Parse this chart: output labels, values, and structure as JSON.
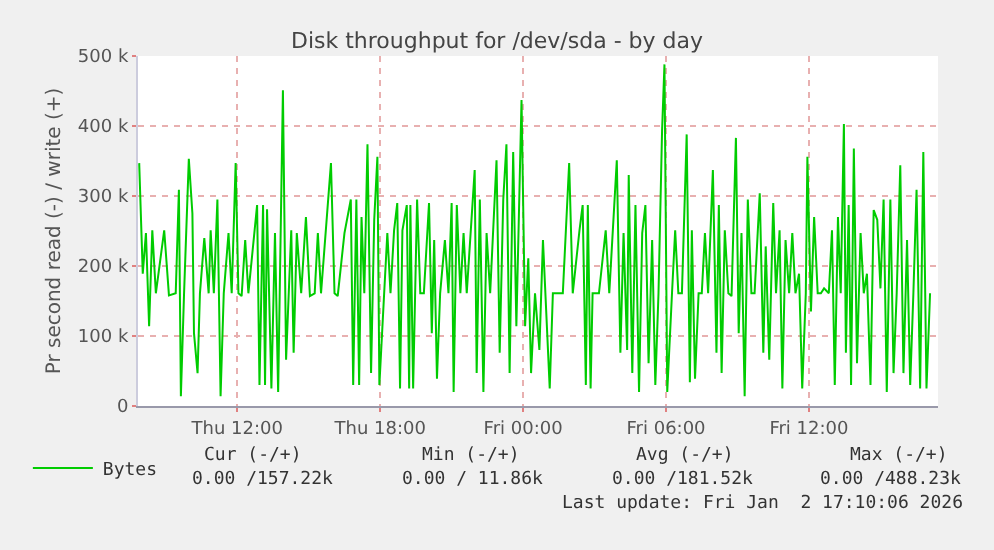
{
  "chart_data": {
    "type": "line",
    "title": "Disk throughput for /dev/sda - by day",
    "ylabel": "Pr second read (-) / write (+)",
    "xlim": [
      "2026-01-01T07:50",
      "2026-01-02T17:25"
    ],
    "xticks": [
      {
        "value": "2026-01-01T12:00",
        "label": "Thu 12:00"
      },
      {
        "value": "2026-01-01T18:00",
        "label": "Thu 18:00"
      },
      {
        "value": "2026-01-02T00:00",
        "label": "Fri 00:00"
      },
      {
        "value": "2026-01-02T06:00",
        "label": "Fri 06:00"
      },
      {
        "value": "2026-01-02T12:00",
        "label": "Fri 12:00"
      }
    ],
    "ylim": [
      0,
      500
    ],
    "yticks": [
      0,
      {
        "value": 100,
        "label": "100 k"
      },
      {
        "value": 200,
        "label": "200 k"
      },
      {
        "value": 300,
        "label": "300 k"
      },
      {
        "value": 400,
        "label": "400 k"
      },
      {
        "value": 500,
        "label": "500 k"
      }
    ],
    "grid": true,
    "legend": "bottom left",
    "marker": "none",
    "line_style": "solid",
    "series": [
      {
        "name": "Bytes",
        "color": "#00cc00",
        "x": [
          "2026-01-01T07:53",
          "2026-01-01T08:02",
          "2026-01-01T08:10",
          "2026-01-01T08:18",
          "2026-01-01T08:26",
          "2026-01-01T08:35",
          "2026-01-01T08:56",
          "2026-01-01T09:08",
          "2026-01-01T09:25",
          "2026-01-01T09:33",
          "2026-01-01T09:38",
          "2026-01-01T09:46",
          "2026-01-01T09:58",
          "2026-01-01T10:07",
          "2026-01-01T10:11",
          "2026-01-01T10:20",
          "2026-01-01T10:26",
          "2026-01-01T10:37",
          "2026-01-01T10:48",
          "2026-01-01T10:53",
          "2026-01-01T11:01",
          "2026-01-01T11:10",
          "2026-01-01T11:18",
          "2026-01-01T11:26",
          "2026-01-01T11:38",
          "2026-01-01T11:46",
          "2026-01-01T11:56",
          "2026-01-01T12:03",
          "2026-01-01T12:11",
          "2026-01-01T12:20",
          "2026-01-01T12:28",
          "2026-01-01T12:50",
          "2026-01-01T12:56",
          "2026-01-01T13:05",
          "2026-01-01T13:10",
          "2026-01-01T13:15",
          "2026-01-01T13:26",
          "2026-01-01T13:35",
          "2026-01-01T13:43",
          "2026-01-01T13:55",
          "2026-01-01T14:03",
          "2026-01-01T14:16",
          "2026-01-01T14:22",
          "2026-01-01T14:30",
          "2026-01-01T14:41",
          "2026-01-01T14:53",
          "2026-01-01T15:03",
          "2026-01-01T15:15",
          "2026-01-01T15:23",
          "2026-01-01T15:31",
          "2026-01-01T15:56",
          "2026-01-01T16:05",
          "2026-01-01T16:13",
          "2026-01-01T16:30",
          "2026-01-01T16:46",
          "2026-01-01T16:52",
          "2026-01-01T17:00",
          "2026-01-01T17:07",
          "2026-01-01T17:13",
          "2026-01-01T17:20",
          "2026-01-01T17:28",
          "2026-01-01T17:37",
          "2026-01-01T17:45",
          "2026-01-01T17:53",
          "2026-01-01T17:58",
          "2026-01-01T18:10",
          "2026-01-01T18:18",
          "2026-01-01T18:26",
          "2026-01-01T18:35",
          "2026-01-01T18:43",
          "2026-01-01T18:50",
          "2026-01-01T18:56",
          "2026-01-01T19:07",
          "2026-01-01T19:13",
          "2026-01-01T19:16",
          "2026-01-01T19:23",
          "2026-01-01T19:33",
          "2026-01-01T19:41",
          "2026-01-01T19:50",
          "2026-01-01T20:03",
          "2026-01-01T20:10",
          "2026-01-01T20:16",
          "2026-01-01T20:23",
          "2026-01-01T20:31",
          "2026-01-01T20:43",
          "2026-01-01T20:52",
          "2026-01-01T21:00",
          "2026-01-01T21:05",
          "2026-01-01T21:13",
          "2026-01-01T21:22",
          "2026-01-01T21:30",
          "2026-01-01T21:38",
          "2026-01-01T21:58",
          "2026-01-01T22:03",
          "2026-01-01T22:11",
          "2026-01-01T22:20",
          "2026-01-01T22:28",
          "2026-01-01T22:37",
          "2026-01-01T22:53",
          "2026-01-01T23:01",
          "2026-01-01T23:10",
          "2026-01-01T23:18",
          "2026-01-01T23:26",
          "2026-01-01T23:35",
          "2026-01-01T23:43",
          "2026-01-01T23:56",
          "2026-01-02T00:05",
          "2026-01-02T00:13",
          "2026-01-02T00:20",
          "2026-01-02T00:30",
          "2026-01-02T00:41",
          "2026-01-02T00:50",
          "2026-01-02T01:07",
          "2026-01-02T01:15",
          "2026-01-02T01:40",
          "2026-01-02T01:56",
          "2026-01-02T02:05",
          "2026-01-02T02:22",
          "2026-01-02T02:30",
          "2026-01-02T02:38",
          "2026-01-02T02:43",
          "2026-01-02T02:50",
          "2026-01-02T02:55",
          "2026-01-02T03:11",
          "2026-01-02T03:28",
          "2026-01-02T03:37",
          "2026-01-02T03:56",
          "2026-01-02T04:05",
          "2026-01-02T04:13",
          "2026-01-02T04:22",
          "2026-01-02T04:26",
          "2026-01-02T04:35",
          "2026-01-02T04:43",
          "2026-01-02T04:52",
          "2026-01-02T05:00",
          "2026-01-02T05:08",
          "2026-01-02T05:16",
          "2026-01-02T05:25",
          "2026-01-02T05:33",
          "2026-01-02T05:41",
          "2026-01-02T05:50",
          "2026-01-02T05:56",
          "2026-01-02T06:03",
          "2026-01-02T06:15",
          "2026-01-02T06:23",
          "2026-01-02T06:31",
          "2026-01-02T06:40",
          "2026-01-02T06:52",
          "2026-01-02T07:00",
          "2026-01-02T07:05",
          "2026-01-02T07:13",
          "2026-01-02T07:22",
          "2026-01-02T07:30",
          "2026-01-02T07:38",
          "2026-01-02T07:46",
          "2026-01-02T07:58",
          "2026-01-02T08:07",
          "2026-01-02T08:13",
          "2026-01-02T08:20",
          "2026-01-02T08:28",
          "2026-01-02T08:37",
          "2026-01-02T08:45",
          "2026-01-02T08:56",
          "2026-01-02T09:03",
          "2026-01-02T09:10",
          "2026-01-02T09:18",
          "2026-01-02T09:26",
          "2026-01-02T09:35",
          "2026-01-02T09:43",
          "2026-01-02T09:56",
          "2026-01-02T10:05",
          "2026-01-02T10:11",
          "2026-01-02T10:20",
          "2026-01-02T10:30",
          "2026-01-02T10:37",
          "2026-01-02T10:46",
          "2026-01-02T10:53",
          "2026-01-02T11:01",
          "2026-01-02T11:10",
          "2026-01-02T11:18",
          "2026-01-02T11:26",
          "2026-01-02T11:35",
          "2026-01-02T11:43",
          "2026-01-02T11:52",
          "2026-01-02T11:56",
          "2026-01-02T12:05",
          "2026-01-02T12:13",
          "2026-01-02T12:22",
          "2026-01-02T12:30",
          "2026-01-02T12:38",
          "2026-01-02T12:50",
          "2026-01-02T12:58",
          "2026-01-02T13:05",
          "2026-01-02T13:13",
          "2026-01-02T13:20",
          "2026-01-02T13:28",
          "2026-01-02T13:33",
          "2026-01-02T13:40",
          "2026-01-02T13:46",
          "2026-01-02T13:53",
          "2026-01-02T14:01",
          "2026-01-02T14:10",
          "2026-01-02T14:18",
          "2026-01-02T14:26",
          "2026-01-02T14:35",
          "2026-01-02T14:43",
          "2026-01-02T14:52",
          "2026-01-02T15:00",
          "2026-01-02T15:08",
          "2026-01-02T15:16",
          "2026-01-02T15:25",
          "2026-01-02T15:33",
          "2026-01-02T15:41",
          "2026-01-02T15:50",
          "2026-01-02T15:58",
          "2026-01-02T16:07",
          "2026-01-02T16:15",
          "2026-01-02T16:23",
          "2026-01-02T16:31",
          "2026-01-02T16:40",
          "2026-01-02T16:48",
          "2026-01-02T16:56",
          "2026-01-02T17:05"
        ],
        "values": [
          347,
          189,
          247,
          114,
          251,
          161,
          251,
          158,
          161,
          309,
          14,
          161,
          353,
          275,
          104,
          47,
          161,
          240,
          161,
          251,
          161,
          295,
          14,
          161,
          247,
          161,
          347,
          161,
          157,
          237,
          161,
          287,
          30,
          287,
          30,
          281,
          25,
          247,
          20,
          451,
          66,
          251,
          76,
          247,
          161,
          270,
          157,
          161,
          247,
          161,
          347,
          161,
          157,
          247,
          295,
          30,
          295,
          30,
          270,
          161,
          374,
          47,
          266,
          356,
          30,
          161,
          247,
          161,
          251,
          290,
          25,
          251,
          287,
          25,
          287,
          25,
          295,
          161,
          161,
          290,
          104,
          237,
          39,
          161,
          237,
          161,
          290,
          20,
          287,
          161,
          247,
          161,
          337,
          47,
          295,
          20,
          247,
          161,
          351,
          76,
          295,
          374,
          47,
          363,
          114,
          437,
          114,
          211,
          47,
          161,
          80,
          237,
          25,
          161,
          161,
          347,
          161,
          251,
          287,
          30,
          287,
          25,
          161,
          161,
          251,
          161,
          351,
          76,
          247,
          80,
          330,
          47,
          287,
          20,
          247,
          287,
          61,
          237,
          30,
          161,
          393,
          488,
          20,
          161,
          251,
          161,
          161,
          388,
          34,
          251,
          39,
          161,
          161,
          247,
          161,
          337,
          76,
          287,
          47,
          251,
          161,
          157,
          383,
          104,
          247,
          14,
          295,
          161,
          161,
          304,
          76,
          228,
          66,
          290,
          161,
          251,
          25,
          237,
          161,
          247,
          161,
          189,
          25,
          161,
          356,
          135,
          270,
          161,
          161,
          168,
          161,
          251,
          30,
          270,
          161,
          403,
          76,
          287,
          30,
          368,
          61,
          247,
          161,
          189,
          30,
          280,
          266,
          168,
          295,
          20,
          295,
          47,
          161,
          344,
          47,
          237,
          30,
          161,
          309,
          25,
          363,
          25,
          161
        ]
      }
    ],
    "annotations": [
      "Cur (-/+)",
      "Min (-/+)",
      "Avg (-/+)",
      "Max (-/+)",
      "0.00 /157.22k",
      "0.00 / 11.86k",
      "0.00 /181.52k",
      "0.00 /488.23k",
      "Last update: Fri Jan  2 17:10:06 2026"
    ]
  }
}
